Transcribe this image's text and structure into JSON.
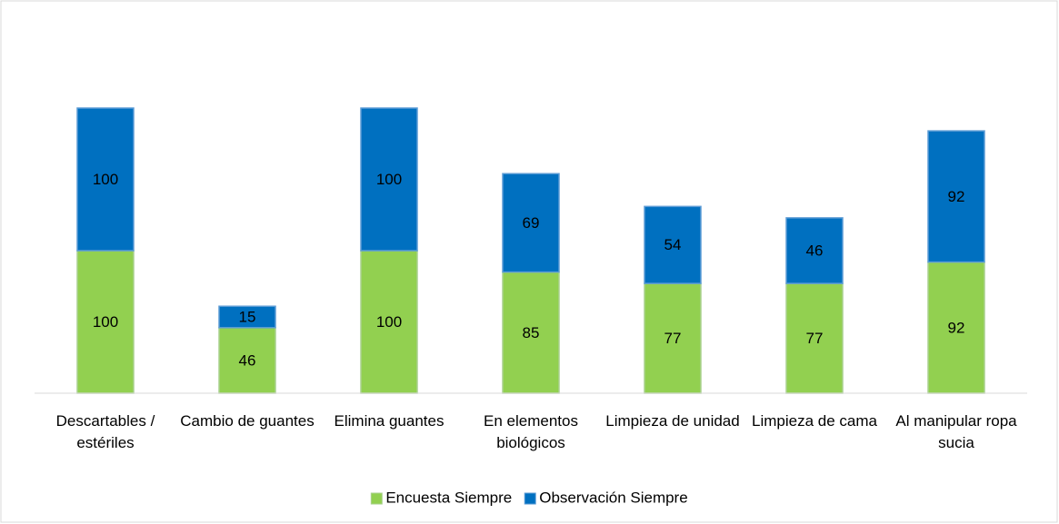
{
  "chart_data": {
    "type": "stacked_bar",
    "categories": [
      "Descartables / estériles",
      "Cambio de guantes",
      "Elimina guantes",
      "En elementos biológicos",
      "Limpieza de unidad",
      "Limpieza de cama",
      "Al manipular ropa sucia"
    ],
    "series": [
      {
        "name": "Encuesta Siempre",
        "color": "#92d050",
        "values": [
          100,
          46,
          100,
          85,
          77,
          77,
          92
        ]
      },
      {
        "name": "Observación Siempre",
        "color": "#0070c0",
        "values": [
          100,
          15,
          100,
          69,
          54,
          46,
          92
        ]
      }
    ],
    "legend": "bottom"
  }
}
